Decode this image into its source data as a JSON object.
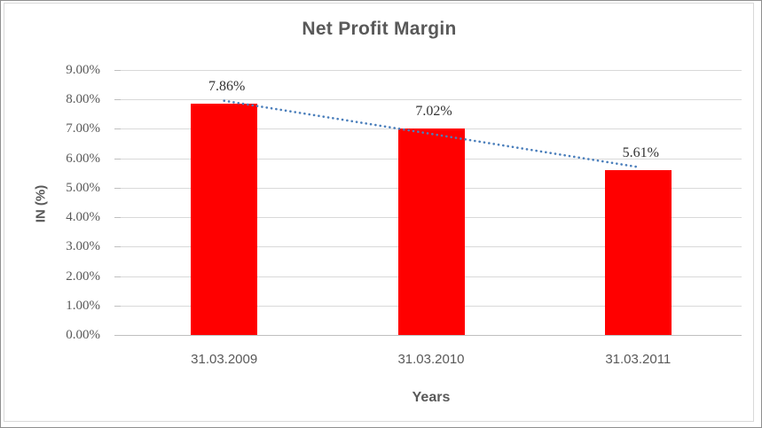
{
  "window": {
    "background": "#ffffff",
    "outer_border_color": "#8f8f8f",
    "chart_frame_border_color": "#d9d9d9"
  },
  "chart_data": {
    "type": "bar",
    "title": "Net Profit Margin",
    "xlabel": "Years",
    "ylabel": "IN (%)",
    "categories": [
      "31.03.2009",
      "31.03.2010",
      "31.03.2011"
    ],
    "values": [
      7.86,
      7.02,
      5.61
    ],
    "value_labels": [
      "7.86%",
      "7.02%",
      "5.61%"
    ],
    "ylim": [
      0,
      9
    ],
    "ytick_step": 1,
    "ytick_labels": [
      "0.00%",
      "1.00%",
      "2.00%",
      "3.00%",
      "4.00%",
      "5.00%",
      "6.00%",
      "7.00%",
      "8.00%",
      "9.00%"
    ],
    "grid": true,
    "legend": "none",
    "bar_color": "#ff0000",
    "gridline_color": "#d9d9d9",
    "axis_line_color": "#bfbfbf",
    "trendline": {
      "type": "linear",
      "style": "dotted",
      "color": "#4a7ebb"
    }
  }
}
